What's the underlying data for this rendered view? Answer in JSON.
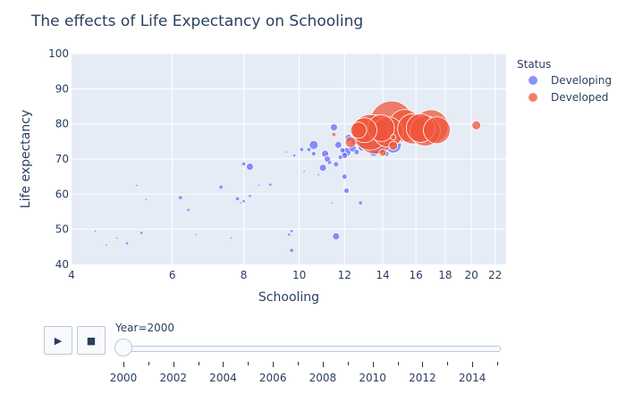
{
  "chart_data": {
    "type": "scatter",
    "title": "The effects of Life Expectancy on Schooling",
    "xlabel": "Schooling",
    "ylabel": "Life expectancy",
    "x_scale": "log",
    "xlim": [
      4,
      23
    ],
    "ylim": [
      40,
      100
    ],
    "x_ticks": [
      4,
      6,
      8,
      10,
      12,
      14,
      16,
      18,
      20,
      22
    ],
    "y_ticks": [
      40,
      50,
      60,
      70,
      80,
      90,
      100
    ],
    "grid": true,
    "legend": {
      "title": "Status",
      "placement": "top-right"
    },
    "series": [
      {
        "name": "Developing",
        "color": "#636efa",
        "points": [
          [
            4.4,
            49.5,
            1
          ],
          [
            4.6,
            45.5,
            1
          ],
          [
            4.8,
            47.5,
            1
          ],
          [
            5.0,
            46,
            1.5
          ],
          [
            5.3,
            49,
            1.5
          ],
          [
            5.2,
            62.5,
            1
          ],
          [
            5.4,
            58.5,
            1
          ],
          [
            6.2,
            59,
            2
          ],
          [
            6.4,
            55.5,
            1.5
          ],
          [
            6.6,
            48.5,
            1
          ],
          [
            7.3,
            62,
            2
          ],
          [
            7.6,
            47.5,
            1
          ],
          [
            7.8,
            58.7,
            2
          ],
          [
            7.9,
            57.5,
            1
          ],
          [
            8.0,
            68.6,
            2
          ],
          [
            8.0,
            58,
            1.5
          ],
          [
            8.2,
            67.8,
            4
          ],
          [
            8.2,
            59.5,
            1.5
          ],
          [
            8.5,
            62.5,
            1
          ],
          [
            8.9,
            62.7,
            1.5
          ],
          [
            9.5,
            72,
            1
          ],
          [
            9.6,
            48.5,
            1.5
          ],
          [
            9.7,
            49.5,
            1.5
          ],
          [
            9.7,
            44,
            2
          ],
          [
            9.8,
            71,
            1.5
          ],
          [
            10.1,
            72.7,
            2
          ],
          [
            10.2,
            66.5,
            1
          ],
          [
            10.4,
            72.7,
            2
          ],
          [
            10.6,
            74,
            5
          ],
          [
            10.6,
            71.5,
            2.5
          ],
          [
            10.8,
            65.5,
            1
          ],
          [
            11.0,
            67.5,
            4
          ],
          [
            11.1,
            71.5,
            4
          ],
          [
            11.2,
            70,
            3.5
          ],
          [
            11.3,
            69,
            2
          ],
          [
            11.4,
            57.5,
            1
          ],
          [
            11.5,
            79,
            4
          ],
          [
            11.6,
            68.5,
            3
          ],
          [
            11.6,
            48,
            4
          ],
          [
            11.7,
            74,
            4
          ],
          [
            11.8,
            70.5,
            2.5
          ],
          [
            11.9,
            72.5,
            3
          ],
          [
            12.0,
            65,
            3
          ],
          [
            12.0,
            71,
            3.5
          ],
          [
            12.1,
            61,
            3
          ],
          [
            12.1,
            72,
            5
          ],
          [
            12.2,
            76,
            4
          ],
          [
            12.4,
            73,
            4
          ],
          [
            12.5,
            75,
            4
          ],
          [
            12.8,
            57.5,
            2
          ],
          [
            12.6,
            72,
            3
          ],
          [
            12.9,
            73.5,
            5
          ],
          [
            13.0,
            76,
            6
          ],
          [
            13.2,
            74.5,
            5
          ],
          [
            13.5,
            72,
            5
          ],
          [
            13.8,
            73,
            6
          ],
          [
            14.2,
            75.5,
            7
          ],
          [
            14.6,
            74,
            9
          ],
          [
            14.2,
            71.5,
            3
          ],
          [
            15.0,
            75.5,
            4
          ]
        ]
      },
      {
        "name": "Developed",
        "color": "#ef553b",
        "points": [
          [
            11.5,
            77,
            2
          ],
          [
            12.3,
            74.8,
            6
          ],
          [
            12.7,
            78.2,
            9
          ],
          [
            13.0,
            78.2,
            14
          ],
          [
            13.3,
            77.6,
            20
          ],
          [
            13.6,
            77,
            22
          ],
          [
            13.9,
            78.8,
            15
          ],
          [
            14.0,
            71.8,
            4
          ],
          [
            14.3,
            77.7,
            17
          ],
          [
            14.5,
            80.4,
            24
          ],
          [
            14.6,
            76.2,
            3
          ],
          [
            14.6,
            73.8,
            5
          ],
          [
            15.3,
            79.5,
            18
          ],
          [
            15.8,
            78.6,
            17
          ],
          [
            16.3,
            78.8,
            16
          ],
          [
            16.6,
            78.0,
            17
          ],
          [
            17.0,
            79.2,
            19
          ],
          [
            17.4,
            78.2,
            15
          ],
          [
            20.4,
            79.6,
            5
          ]
        ]
      }
    ]
  },
  "controls": {
    "play_icon": "▶",
    "stop_icon": "■",
    "slider_label": "Year=2000",
    "years": [
      2000,
      2001,
      2002,
      2003,
      2004,
      2005,
      2006,
      2007,
      2008,
      2009,
      2010,
      2011,
      2012,
      2013,
      2014,
      2015
    ],
    "labeled_years": [
      "2000",
      "2002",
      "2004",
      "2006",
      "2008",
      "2010",
      "2012",
      "2014"
    ],
    "current_year": 2000
  }
}
